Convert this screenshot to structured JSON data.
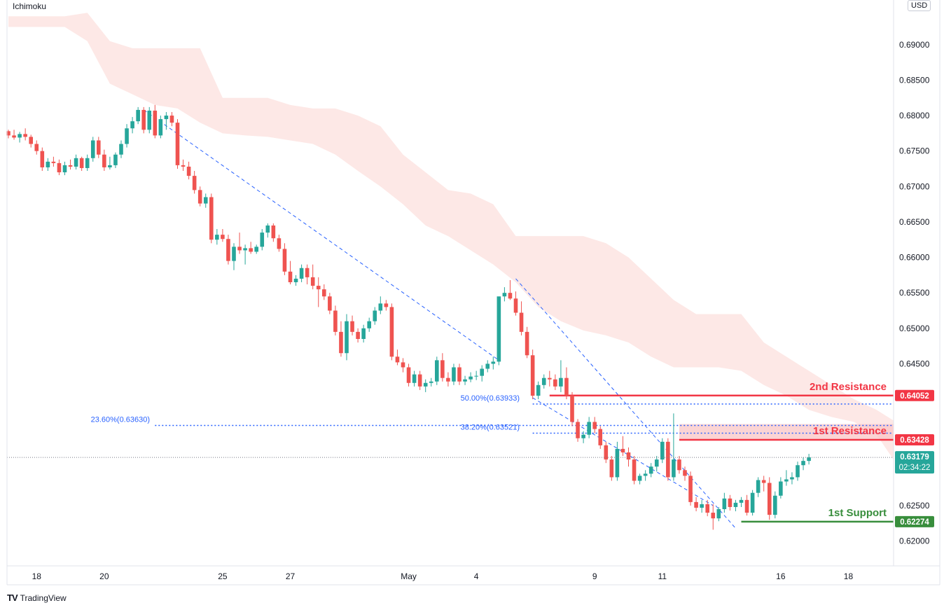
{
  "header": {
    "indicator": "Ichimoku",
    "currency": "USD"
  },
  "brand": {
    "logo": "TV",
    "name": "TradingView"
  },
  "colors": {
    "bull": "#26a69a",
    "bear": "#ef5350",
    "cloud": "#fde5e3",
    "fib": "#2962ff",
    "resistance": "#f23645",
    "support": "#388e3c",
    "price": "#26a69a"
  },
  "chart_data": {
    "type": "candlestick",
    "title": "",
    "ylim": [
      0.6165,
      0.6963
    ],
    "yticks": [
      "0.69000",
      "0.68500",
      "0.68000",
      "0.67500",
      "0.67000",
      "0.66500",
      "0.66000",
      "0.65500",
      "0.65000",
      "0.64500",
      "0.62500",
      "0.62000"
    ],
    "xticks": [
      {
        "label": "18",
        "i": 5
      },
      {
        "label": "20",
        "i": 17
      },
      {
        "label": "25",
        "i": 38
      },
      {
        "label": "27",
        "i": 50
      },
      {
        "label": "May",
        "i": 71
      },
      {
        "label": "4",
        "i": 83
      },
      {
        "label": "9",
        "i": 104
      },
      {
        "label": "11",
        "i": 116
      },
      {
        "label": "16",
        "i": 137
      },
      {
        "label": "18",
        "i": 149
      }
    ],
    "candles": [
      [
        0.6778,
        0.678,
        0.6768,
        0.6772
      ],
      [
        0.6772,
        0.678,
        0.6766,
        0.6769
      ],
      [
        0.6769,
        0.6777,
        0.6762,
        0.6774
      ],
      [
        0.6774,
        0.6782,
        0.6765,
        0.677
      ],
      [
        0.677,
        0.6773,
        0.6755,
        0.676
      ],
      [
        0.676,
        0.6765,
        0.6745,
        0.675
      ],
      [
        0.675,
        0.6755,
        0.6722,
        0.6727
      ],
      [
        0.6727,
        0.674,
        0.6722,
        0.6735
      ],
      [
        0.6735,
        0.6742,
        0.6728,
        0.6733
      ],
      [
        0.6733,
        0.6738,
        0.6716,
        0.672
      ],
      [
        0.672,
        0.6735,
        0.6716,
        0.673
      ],
      [
        0.673,
        0.6738,
        0.6724,
        0.6728
      ],
      [
        0.6728,
        0.6745,
        0.6724,
        0.674
      ],
      [
        0.674,
        0.6742,
        0.6722,
        0.6726
      ],
      [
        0.6726,
        0.6745,
        0.6722,
        0.674
      ],
      [
        0.674,
        0.677,
        0.6735,
        0.6765
      ],
      [
        0.6765,
        0.677,
        0.674,
        0.6745
      ],
      [
        0.6745,
        0.6752,
        0.6722,
        0.6727
      ],
      [
        0.6727,
        0.6742,
        0.6724,
        0.673
      ],
      [
        0.673,
        0.6748,
        0.6726,
        0.6745
      ],
      [
        0.6745,
        0.6765,
        0.674,
        0.676
      ],
      [
        0.676,
        0.6788,
        0.6755,
        0.6782
      ],
      [
        0.6782,
        0.6798,
        0.6775,
        0.6792
      ],
      [
        0.6792,
        0.6812,
        0.6788,
        0.6808
      ],
      [
        0.6808,
        0.6812,
        0.6775,
        0.678
      ],
      [
        0.678,
        0.6812,
        0.6775,
        0.6807
      ],
      [
        0.6807,
        0.6815,
        0.6768,
        0.6772
      ],
      [
        0.6772,
        0.68,
        0.6768,
        0.6795
      ],
      [
        0.6795,
        0.6805,
        0.678,
        0.68
      ],
      [
        0.68,
        0.6805,
        0.6785,
        0.679
      ],
      [
        0.679,
        0.6795,
        0.6725,
        0.673
      ],
      [
        0.673,
        0.6738,
        0.6722,
        0.6728
      ],
      [
        0.6728,
        0.6735,
        0.671,
        0.6715
      ],
      [
        0.6715,
        0.6722,
        0.669,
        0.6695
      ],
      [
        0.6695,
        0.67,
        0.6672,
        0.6676
      ],
      [
        0.6676,
        0.669,
        0.667,
        0.6685
      ],
      [
        0.6685,
        0.669,
        0.662,
        0.6625
      ],
      [
        0.6625,
        0.664,
        0.6618,
        0.6632
      ],
      [
        0.6632,
        0.664,
        0.6622,
        0.6626
      ],
      [
        0.6626,
        0.6632,
        0.659,
        0.6595
      ],
      [
        0.6595,
        0.662,
        0.6582,
        0.6615
      ],
      [
        0.6615,
        0.6635,
        0.6605,
        0.661
      ],
      [
        0.661,
        0.6618,
        0.659,
        0.6613
      ],
      [
        0.6613,
        0.6622,
        0.6605,
        0.6608
      ],
      [
        0.6608,
        0.6618,
        0.6605,
        0.6615
      ],
      [
        0.6615,
        0.664,
        0.661,
        0.6635
      ],
      [
        0.6635,
        0.6648,
        0.6628,
        0.6645
      ],
      [
        0.6645,
        0.6648,
        0.6622,
        0.6627
      ],
      [
        0.6627,
        0.6632,
        0.6608,
        0.6612
      ],
      [
        0.6612,
        0.662,
        0.6575,
        0.658
      ],
      [
        0.658,
        0.6595,
        0.6562,
        0.6565
      ],
      [
        0.6565,
        0.6575,
        0.656,
        0.657
      ],
      [
        0.657,
        0.659,
        0.6565,
        0.6585
      ],
      [
        0.6585,
        0.659,
        0.6562,
        0.6572
      ],
      [
        0.6572,
        0.659,
        0.6555,
        0.656
      ],
      [
        0.656,
        0.6572,
        0.653,
        0.6555
      ],
      [
        0.6555,
        0.6562,
        0.654,
        0.6545
      ],
      [
        0.6545,
        0.655,
        0.652,
        0.6525
      ],
      [
        0.6525,
        0.6532,
        0.649,
        0.6495
      ],
      [
        0.6495,
        0.651,
        0.646,
        0.6465
      ],
      [
        0.6465,
        0.652,
        0.6455,
        0.651
      ],
      [
        0.651,
        0.6518,
        0.649,
        0.6495
      ],
      [
        0.6495,
        0.65,
        0.648,
        0.6485
      ],
      [
        0.6485,
        0.6505,
        0.648,
        0.65
      ],
      [
        0.65,
        0.6515,
        0.6495,
        0.651
      ],
      [
        0.651,
        0.653,
        0.6505,
        0.6525
      ],
      [
        0.6525,
        0.6545,
        0.652,
        0.6535
      ],
      [
        0.6535,
        0.654,
        0.6525,
        0.653
      ],
      [
        0.653,
        0.6535,
        0.6455,
        0.646
      ],
      [
        0.646,
        0.647,
        0.6448,
        0.6452
      ],
      [
        0.6452,
        0.6458,
        0.6438,
        0.6445
      ],
      [
        0.6445,
        0.645,
        0.6418,
        0.6423
      ],
      [
        0.6423,
        0.644,
        0.6418,
        0.6435
      ],
      [
        0.6435,
        0.644,
        0.6413,
        0.6418
      ],
      [
        0.6418,
        0.6428,
        0.641,
        0.6423
      ],
      [
        0.6423,
        0.643,
        0.6418,
        0.6425
      ],
      [
        0.6425,
        0.646,
        0.642,
        0.6455
      ],
      [
        0.6455,
        0.6465,
        0.6425,
        0.643
      ],
      [
        0.643,
        0.6438,
        0.6418,
        0.6425
      ],
      [
        0.6425,
        0.645,
        0.642,
        0.6445
      ],
      [
        0.6445,
        0.645,
        0.642,
        0.6425
      ],
      [
        0.6425,
        0.6433,
        0.642,
        0.6428
      ],
      [
        0.6428,
        0.6438,
        0.6424,
        0.6432
      ],
      [
        0.6432,
        0.644,
        0.6427,
        0.6433
      ],
      [
        0.6433,
        0.6448,
        0.6425,
        0.6443
      ],
      [
        0.6443,
        0.6455,
        0.6438,
        0.645
      ],
      [
        0.645,
        0.646,
        0.6442,
        0.6453
      ],
      [
        0.6453,
        0.654,
        0.6448,
        0.6545
      ],
      [
        0.6545,
        0.6558,
        0.6538,
        0.655
      ],
      [
        0.655,
        0.6568,
        0.654,
        0.6542
      ],
      [
        0.6542,
        0.6552,
        0.6518,
        0.6522
      ],
      [
        0.6522,
        0.6538,
        0.649,
        0.6495
      ],
      [
        0.6495,
        0.6502,
        0.6458,
        0.6462
      ],
      [
        0.6462,
        0.647,
        0.64,
        0.6405
      ],
      [
        0.6405,
        0.6425,
        0.64,
        0.642
      ],
      [
        0.642,
        0.6435,
        0.6415,
        0.643
      ],
      [
        0.643,
        0.644,
        0.6418,
        0.6428
      ],
      [
        0.6428,
        0.6435,
        0.6413,
        0.6418
      ],
      [
        0.6418,
        0.6455,
        0.641,
        0.643
      ],
      [
        0.643,
        0.6445,
        0.64,
        0.6405
      ],
      [
        0.6405,
        0.641,
        0.6362,
        0.6368
      ],
      [
        0.6368,
        0.6372,
        0.634,
        0.6345
      ],
      [
        0.6345,
        0.6355,
        0.6338,
        0.635
      ],
      [
        0.635,
        0.6375,
        0.6345,
        0.6368
      ],
      [
        0.6368,
        0.6375,
        0.6352,
        0.6358
      ],
      [
        0.6358,
        0.6362,
        0.633,
        0.6335
      ],
      [
        0.6335,
        0.634,
        0.631,
        0.6315
      ],
      [
        0.6315,
        0.632,
        0.6285,
        0.629
      ],
      [
        0.629,
        0.634,
        0.6285,
        0.633
      ],
      [
        0.633,
        0.6348,
        0.632,
        0.6325
      ],
      [
        0.6325,
        0.6332,
        0.6305,
        0.6315
      ],
      [
        0.6315,
        0.632,
        0.628,
        0.6285
      ],
      [
        0.6285,
        0.6295,
        0.628,
        0.6292
      ],
      [
        0.6292,
        0.63,
        0.6285,
        0.6295
      ],
      [
        0.6295,
        0.631,
        0.629,
        0.6305
      ],
      [
        0.6305,
        0.632,
        0.6298,
        0.6315
      ],
      [
        0.6315,
        0.6345,
        0.631,
        0.634
      ],
      [
        0.634,
        0.6345,
        0.6285,
        0.629
      ],
      [
        0.629,
        0.638,
        0.6285,
        0.6315
      ],
      [
        0.6315,
        0.632,
        0.6295,
        0.63
      ],
      [
        0.63,
        0.6305,
        0.6285,
        0.6292
      ],
      [
        0.6292,
        0.6298,
        0.625,
        0.6255
      ],
      [
        0.6255,
        0.6262,
        0.6242,
        0.6247
      ],
      [
        0.6247,
        0.6258,
        0.624,
        0.6252
      ],
      [
        0.6252,
        0.6258,
        0.6235,
        0.624
      ],
      [
        0.624,
        0.6252,
        0.6216,
        0.6232
      ],
      [
        0.6232,
        0.6248,
        0.6228,
        0.6245
      ],
      [
        0.6245,
        0.6268,
        0.624,
        0.626
      ],
      [
        0.626,
        0.6265,
        0.6243,
        0.6248
      ],
      [
        0.6248,
        0.6258,
        0.6242,
        0.6254
      ],
      [
        0.6254,
        0.6262,
        0.6248,
        0.6258
      ],
      [
        0.6258,
        0.6265,
        0.6236,
        0.624
      ],
      [
        0.624,
        0.6272,
        0.6236,
        0.6268
      ],
      [
        0.6268,
        0.629,
        0.6262,
        0.6286
      ],
      [
        0.6286,
        0.6292,
        0.627,
        0.6282
      ],
      [
        0.6282,
        0.629,
        0.623,
        0.6237
      ],
      [
        0.6237,
        0.627,
        0.6232,
        0.6264
      ],
      [
        0.6264,
        0.629,
        0.626,
        0.6284
      ],
      [
        0.6284,
        0.63,
        0.6278,
        0.6287
      ],
      [
        0.6287,
        0.6297,
        0.628,
        0.629
      ],
      [
        0.629,
        0.6312,
        0.6285,
        0.6307
      ],
      [
        0.6307,
        0.6318,
        0.63,
        0.6313
      ],
      [
        0.6313,
        0.6323,
        0.6308,
        0.6318
      ]
    ],
    "cloud": [
      [
        0,
        0.694,
        0.6925
      ],
      [
        6,
        0.694,
        0.6925
      ],
      [
        10,
        0.694,
        0.6925
      ],
      [
        14,
        0.6945,
        0.6905
      ],
      [
        18,
        0.6905,
        0.6845
      ],
      [
        22,
        0.6895,
        0.683
      ],
      [
        26,
        0.6895,
        0.6815
      ],
      [
        30,
        0.6895,
        0.681
      ],
      [
        34,
        0.6895,
        0.679
      ],
      [
        38,
        0.6825,
        0.6775
      ],
      [
        42,
        0.6825,
        0.6772
      ],
      [
        46,
        0.6825,
        0.677
      ],
      [
        50,
        0.6815,
        0.6765
      ],
      [
        54,
        0.681,
        0.676
      ],
      [
        58,
        0.681,
        0.6745
      ],
      [
        62,
        0.68,
        0.6722
      ],
      [
        66,
        0.6785,
        0.67
      ],
      [
        70,
        0.6745,
        0.6675
      ],
      [
        74,
        0.672,
        0.6645
      ],
      [
        78,
        0.6695,
        0.663
      ],
      [
        82,
        0.669,
        0.661
      ],
      [
        86,
        0.6675,
        0.659
      ],
      [
        90,
        0.663,
        0.6565
      ],
      [
        94,
        0.663,
        0.653
      ],
      [
        98,
        0.663,
        0.651
      ],
      [
        102,
        0.663,
        0.6497
      ],
      [
        106,
        0.662,
        0.649
      ],
      [
        110,
        0.66,
        0.648
      ],
      [
        114,
        0.657,
        0.646
      ],
      [
        118,
        0.654,
        0.6445
      ],
      [
        122,
        0.652,
        0.6445
      ],
      [
        126,
        0.652,
        0.6445
      ],
      [
        130,
        0.652,
        0.644
      ],
      [
        134,
        0.648,
        0.642
      ],
      [
        138,
        0.646,
        0.6405
      ],
      [
        142,
        0.644,
        0.6385
      ],
      [
        146,
        0.642,
        0.6375
      ],
      [
        150,
        0.64,
        0.6368
      ],
      [
        154,
        0.6385,
        0.635
      ],
      [
        157,
        0.637,
        0.6315
      ]
    ],
    "trendlines": [
      {
        "from": [
          24,
          0.6808
        ],
        "to": [
          87,
          0.6455
        ]
      },
      {
        "from": [
          90,
          0.657
        ],
        "to": [
          129,
          0.6218
        ]
      },
      {
        "from": [
          93,
          0.6402
        ],
        "to": [
          125,
          0.625
        ]
      }
    ],
    "fib_levels": [
      {
        "label": "50.00%(0.63933)",
        "value": 0.63933,
        "from": 93
      },
      {
        "label": "38.20%(0.63521)",
        "value": 0.63521,
        "from": 93
      },
      {
        "label": "23.60%(0.63630)",
        "value": 0.6363,
        "from": 26
      }
    ],
    "levels": [
      {
        "name": "2nd Resistance",
        "value": 0.64052,
        "tag": "0.64052",
        "color": "#f23645",
        "from": 96
      },
      {
        "name": "1st Resistance",
        "value": 0.63428,
        "tag": "0.63428",
        "color": "#f23645",
        "from": 119
      },
      {
        "name": "1st Support",
        "value": 0.62274,
        "tag": "0.62274",
        "color": "#388e3c",
        "from": 130
      }
    ],
    "zone": {
      "top": 0.6365,
      "bottom": 0.6343,
      "from": 119
    },
    "current_price": {
      "value": 0.63179,
      "tag": "0.63179",
      "countdown": "02:34:22"
    }
  }
}
